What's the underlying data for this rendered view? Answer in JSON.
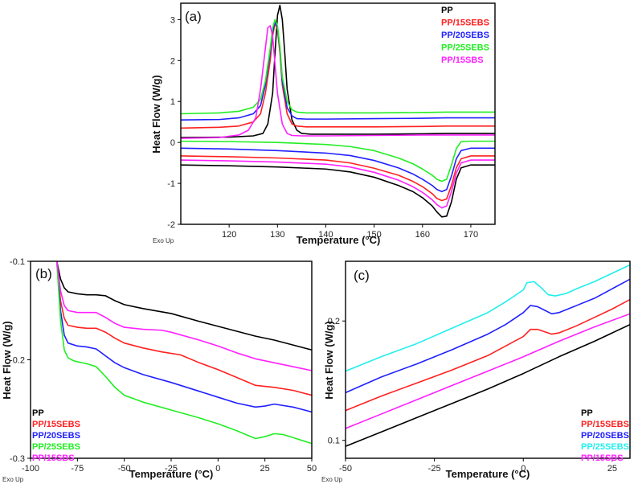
{
  "chart_data": [
    {
      "id": "a",
      "type": "line",
      "panel_label": "(a)",
      "xlabel": "Temperature (°C)",
      "ylabel": "Heat Flow (W/g)",
      "corner_note": "Exo Up",
      "xlim": [
        110,
        175
      ],
      "ylim": [
        -2,
        3.4
      ],
      "xticks": [
        120,
        130,
        140,
        150,
        160,
        170
      ],
      "yticks": [
        -2,
        -1,
        0,
        1,
        2,
        3
      ],
      "legend_position": "top-right",
      "legend": [
        {
          "name": "PP",
          "color": "#000000"
        },
        {
          "name": "PP/15SEBS",
          "color": "#ff2020"
        },
        {
          "name": "PP/20SEBS",
          "color": "#2020ff"
        },
        {
          "name": "PP/25SEBS",
          "color": "#22ee22"
        },
        {
          "name": "PP/15SBS",
          "color": "#ff20ff"
        }
      ],
      "series": [
        {
          "name": "PP",
          "color": "#000000",
          "x": [
            110,
            120,
            125,
            127,
            128,
            129,
            129.5,
            130,
            130.5,
            131,
            131.5,
            132,
            133,
            134,
            135,
            137,
            140,
            150,
            160,
            165,
            170,
            175
          ],
          "y": [
            0.12,
            0.13,
            0.16,
            0.22,
            0.45,
            1.2,
            2.2,
            3.1,
            3.35,
            3.0,
            2.2,
            1.3,
            0.55,
            0.3,
            0.22,
            0.2,
            0.2,
            0.2,
            0.21,
            0.22,
            0.22,
            0.22
          ]
        },
        {
          "name": "PP",
          "color": "#000000",
          "x": [
            110,
            120,
            130,
            140,
            145,
            150,
            155,
            158,
            160,
            162,
            163,
            164,
            165,
            166,
            167,
            168,
            170,
            175
          ],
          "y": [
            -0.55,
            -0.57,
            -0.6,
            -0.65,
            -0.72,
            -0.85,
            -1.05,
            -1.2,
            -1.35,
            -1.55,
            -1.7,
            -1.82,
            -1.8,
            -1.45,
            -0.9,
            -0.62,
            -0.55,
            -0.55
          ]
        },
        {
          "name": "PP/15SEBS",
          "color": "#ff2020",
          "x": [
            110,
            118,
            122,
            125,
            126.5,
            127.5,
            128.5,
            129,
            129.5,
            130,
            130.5,
            131,
            132,
            133,
            134,
            136,
            140,
            150,
            160,
            165,
            170,
            175
          ],
          "y": [
            0.35,
            0.37,
            0.4,
            0.5,
            0.7,
            1.2,
            2.0,
            2.6,
            2.92,
            2.75,
            2.2,
            1.4,
            0.7,
            0.45,
            0.4,
            0.38,
            0.38,
            0.38,
            0.39,
            0.4,
            0.4,
            0.4
          ]
        },
        {
          "name": "PP/15SEBS",
          "color": "#ff2020",
          "x": [
            110,
            120,
            130,
            140,
            145,
            150,
            155,
            158,
            160,
            162,
            163,
            164,
            165,
            166,
            167,
            168,
            170,
            175
          ],
          "y": [
            -0.33,
            -0.35,
            -0.38,
            -0.43,
            -0.5,
            -0.63,
            -0.8,
            -0.95,
            -1.08,
            -1.25,
            -1.37,
            -1.42,
            -1.38,
            -1.05,
            -0.62,
            -0.4,
            -0.33,
            -0.33
          ]
        },
        {
          "name": "PP/20SEBS",
          "color": "#2020ff",
          "x": [
            110,
            118,
            122,
            125,
            126.5,
            127.5,
            128.5,
            129,
            129.5,
            130,
            130.5,
            131,
            132,
            133,
            134,
            136,
            140,
            150,
            160,
            165,
            170,
            175
          ],
          "y": [
            0.55,
            0.56,
            0.6,
            0.7,
            0.9,
            1.4,
            2.2,
            2.7,
            2.95,
            2.8,
            2.3,
            1.5,
            0.85,
            0.65,
            0.58,
            0.57,
            0.57,
            0.58,
            0.59,
            0.6,
            0.6,
            0.6
          ]
        },
        {
          "name": "PP/20SEBS",
          "color": "#2020ff",
          "x": [
            110,
            120,
            130,
            140,
            145,
            150,
            155,
            158,
            160,
            162,
            163,
            164,
            165,
            166,
            167,
            168,
            170,
            175
          ],
          "y": [
            -0.14,
            -0.16,
            -0.2,
            -0.26,
            -0.32,
            -0.44,
            -0.62,
            -0.77,
            -0.9,
            -1.05,
            -1.15,
            -1.2,
            -1.15,
            -0.82,
            -0.4,
            -0.2,
            -0.14,
            -0.14
          ]
        },
        {
          "name": "PP/25SEBS",
          "color": "#22ee22",
          "x": [
            110,
            118,
            122,
            125,
            126.5,
            127.5,
            128.5,
            129,
            129.5,
            130,
            130.5,
            131,
            132,
            133,
            134,
            136,
            140,
            150,
            160,
            165,
            170,
            175
          ],
          "y": [
            0.7,
            0.72,
            0.76,
            0.86,
            1.05,
            1.5,
            2.3,
            2.8,
            3.0,
            2.85,
            2.35,
            1.6,
            1.0,
            0.8,
            0.74,
            0.72,
            0.72,
            0.72,
            0.73,
            0.74,
            0.74,
            0.74
          ]
        },
        {
          "name": "PP/25SEBS",
          "color": "#22ee22",
          "x": [
            110,
            120,
            130,
            140,
            145,
            150,
            155,
            158,
            160,
            162,
            163,
            164,
            165,
            166,
            167,
            168,
            170,
            175
          ],
          "y": [
            0.03,
            0.02,
            0.0,
            -0.05,
            -0.1,
            -0.2,
            -0.38,
            -0.52,
            -0.65,
            -0.8,
            -0.9,
            -0.95,
            -0.9,
            -0.55,
            -0.15,
            0.02,
            0.03,
            0.03
          ]
        },
        {
          "name": "PP/15SBS",
          "color": "#ff20ff",
          "x": [
            110,
            118,
            122,
            124,
            125.5,
            126.5,
            127.5,
            128,
            128.5,
            129,
            129.5,
            130,
            131,
            132,
            133,
            135,
            140,
            150,
            160,
            165,
            170,
            175
          ],
          "y": [
            0.1,
            0.12,
            0.18,
            0.3,
            0.6,
            1.3,
            2.3,
            2.8,
            2.85,
            2.6,
            1.9,
            1.2,
            0.45,
            0.22,
            0.17,
            0.16,
            0.16,
            0.17,
            0.18,
            0.18,
            0.18,
            0.18
          ]
        },
        {
          "name": "PP/15SBS",
          "color": "#ff20ff",
          "x": [
            110,
            120,
            130,
            140,
            145,
            150,
            155,
            158,
            160,
            162,
            163,
            164,
            165,
            166,
            167,
            168,
            170,
            175
          ],
          "y": [
            -0.43,
            -0.45,
            -0.48,
            -0.53,
            -0.6,
            -0.73,
            -0.92,
            -1.08,
            -1.22,
            -1.4,
            -1.52,
            -1.6,
            -1.55,
            -1.2,
            -0.75,
            -0.5,
            -0.43,
            -0.43
          ]
        }
      ]
    },
    {
      "id": "b",
      "type": "line",
      "panel_label": "(b)",
      "xlabel": "Temperature (°C)",
      "ylabel": "Heat Flow (W/g)",
      "corner_note": "Exo Up",
      "xlim": [
        -100,
        50
      ],
      "ylim": [
        -0.3,
        -0.1
      ],
      "xticks": [
        -100,
        -75,
        -50,
        -25,
        0,
        25,
        50
      ],
      "yticks": [
        -0.3,
        -0.2,
        -0.1
      ],
      "legend_position": "bottom-left",
      "legend": [
        {
          "name": "PP",
          "color": "#000000"
        },
        {
          "name": "PP/15SEBS",
          "color": "#ff2020"
        },
        {
          "name": "PP/20SEBS",
          "color": "#2020ff"
        },
        {
          "name": "PP/25SEBS",
          "color": "#22ee22"
        },
        {
          "name": "PP/15SBS",
          "color": "#ff20ff"
        }
      ],
      "series": [
        {
          "name": "PP",
          "color": "#000000",
          "x": [
            -86,
            -84,
            -82,
            -80,
            -75,
            -70,
            -65,
            -60,
            -55,
            -50,
            -40,
            -25,
            -10,
            0,
            10,
            20,
            30,
            40,
            50
          ],
          "y": [
            -0.1,
            -0.118,
            -0.127,
            -0.131,
            -0.133,
            -0.134,
            -0.134,
            -0.135,
            -0.14,
            -0.144,
            -0.148,
            -0.153,
            -0.161,
            -0.166,
            -0.171,
            -0.176,
            -0.18,
            -0.185,
            -0.19
          ]
        },
        {
          "name": "PP/15SEBS",
          "color": "#ff2020",
          "x": [
            -86,
            -84,
            -82,
            -80,
            -75,
            -70,
            -65,
            -60,
            -55,
            -50,
            -40,
            -30,
            -20,
            -10,
            0,
            10,
            20,
            30,
            40,
            50
          ],
          "y": [
            -0.1,
            -0.14,
            -0.158,
            -0.165,
            -0.167,
            -0.168,
            -0.168,
            -0.172,
            -0.178,
            -0.183,
            -0.188,
            -0.192,
            -0.195,
            -0.203,
            -0.21,
            -0.218,
            -0.226,
            -0.228,
            -0.231,
            -0.236
          ]
        },
        {
          "name": "PP/20SEBS",
          "color": "#2020ff",
          "x": [
            -86,
            -84,
            -82,
            -80,
            -75,
            -70,
            -65,
            -60,
            -55,
            -50,
            -40,
            -25,
            -10,
            0,
            10,
            20,
            25,
            30,
            40,
            50
          ],
          "y": [
            -0.1,
            -0.15,
            -0.175,
            -0.183,
            -0.186,
            -0.187,
            -0.189,
            -0.196,
            -0.203,
            -0.208,
            -0.215,
            -0.223,
            -0.232,
            -0.238,
            -0.244,
            -0.248,
            -0.247,
            -0.245,
            -0.248,
            -0.253
          ]
        },
        {
          "name": "PP/25SEBS",
          "color": "#22ee22",
          "x": [
            -86,
            -84,
            -82,
            -80,
            -77,
            -75,
            -70,
            -65,
            -60,
            -55,
            -50,
            -40,
            -25,
            -10,
            0,
            10,
            20,
            25,
            30,
            35,
            40,
            50
          ],
          "y": [
            -0.1,
            -0.16,
            -0.19,
            -0.198,
            -0.201,
            -0.202,
            -0.204,
            -0.207,
            -0.217,
            -0.228,
            -0.236,
            -0.243,
            -0.251,
            -0.259,
            -0.265,
            -0.272,
            -0.28,
            -0.278,
            -0.275,
            -0.276,
            -0.279,
            -0.285
          ]
        },
        {
          "name": "PP/15SBS",
          "color": "#ff20ff",
          "x": [
            -86,
            -84,
            -82,
            -80,
            -75,
            -70,
            -65,
            -60,
            -55,
            -50,
            -40,
            -30,
            -25,
            -10,
            0,
            10,
            20,
            30,
            40,
            50
          ],
          "y": [
            -0.1,
            -0.13,
            -0.145,
            -0.15,
            -0.152,
            -0.152,
            -0.152,
            -0.157,
            -0.163,
            -0.167,
            -0.169,
            -0.17,
            -0.172,
            -0.18,
            -0.186,
            -0.193,
            -0.199,
            -0.203,
            -0.207,
            -0.211
          ]
        }
      ]
    },
    {
      "id": "c",
      "type": "line",
      "panel_label": "(c)",
      "xlabel": "Temperature (°C)",
      "ylabel": "Heat Flow (W/g)",
      "corner_note": "Exo Up",
      "xlim": [
        -50,
        30
      ],
      "ylim": [
        0.085,
        0.25
      ],
      "xticks": [
        -50,
        -25,
        0,
        25
      ],
      "yticks": [
        0.1,
        0.2
      ],
      "legend_position": "bottom-right",
      "legend": [
        {
          "name": "PP",
          "color": "#000000"
        },
        {
          "name": "PP/15SEBS",
          "color": "#ff2020"
        },
        {
          "name": "PP/20SEBS",
          "color": "#2020ff"
        },
        {
          "name": "PP/25SEBS",
          "color": "#22eeee"
        },
        {
          "name": "PP/15SBS",
          "color": "#ff20ff"
        }
      ],
      "series": [
        {
          "name": "PP",
          "color": "#000000",
          "x": [
            -50,
            -40,
            -30,
            -20,
            -10,
            0,
            10,
            20,
            30
          ],
          "y": [
            0.095,
            0.107,
            0.119,
            0.131,
            0.143,
            0.156,
            0.17,
            0.183,
            0.197
          ]
        },
        {
          "name": "PP/15SEBS",
          "color": "#ff2020",
          "x": [
            -50,
            -40,
            -30,
            -20,
            -10,
            -5,
            0,
            2,
            4,
            6,
            8,
            10,
            15,
            20,
            25,
            30
          ],
          "y": [
            0.125,
            0.137,
            0.148,
            0.159,
            0.171,
            0.179,
            0.187,
            0.193,
            0.193,
            0.191,
            0.189,
            0.19,
            0.196,
            0.203,
            0.21,
            0.218
          ]
        },
        {
          "name": "PP/20SEBS",
          "color": "#2020ff",
          "x": [
            -50,
            -40,
            -30,
            -20,
            -10,
            -5,
            0,
            2,
            4,
            6,
            8,
            10,
            15,
            20,
            25,
            30
          ],
          "y": [
            0.14,
            0.153,
            0.164,
            0.176,
            0.189,
            0.197,
            0.207,
            0.213,
            0.212,
            0.209,
            0.206,
            0.207,
            0.213,
            0.219,
            0.227,
            0.235
          ]
        },
        {
          "name": "PP/25SEBS",
          "color": "#22eeee",
          "x": [
            -50,
            -40,
            -30,
            -20,
            -10,
            -5,
            0,
            1,
            3,
            5,
            7,
            9,
            12,
            15,
            20,
            25,
            30
          ],
          "y": [
            0.158,
            0.17,
            0.181,
            0.194,
            0.207,
            0.216,
            0.226,
            0.232,
            0.233,
            0.228,
            0.222,
            0.221,
            0.223,
            0.227,
            0.233,
            0.24,
            0.247
          ]
        },
        {
          "name": "PP/15SBS",
          "color": "#ff20ff",
          "x": [
            -50,
            -40,
            -30,
            -20,
            -10,
            0,
            10,
            20,
            30
          ],
          "y": [
            0.11,
            0.122,
            0.134,
            0.146,
            0.158,
            0.17,
            0.183,
            0.195,
            0.206
          ]
        }
      ]
    }
  ]
}
